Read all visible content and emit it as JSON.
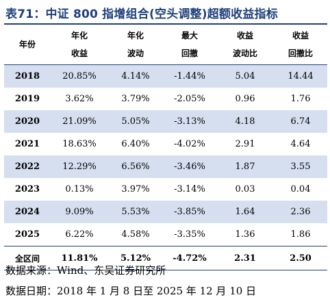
{
  "title": "表71：中证 800 指增组合(空头调整)超额收益指标",
  "headers": [
    [
      "年份"
    ],
    [
      "年化",
      "收益"
    ],
    [
      "年化",
      "波动"
    ],
    [
      "最大",
      "回撤"
    ],
    [
      "收益",
      "波动比"
    ],
    [
      "收益",
      "回撤比"
    ]
  ],
  "rows": [
    [
      "2018",
      "20.85%",
      "4.14%",
      "-1.44%",
      "5.04",
      "14.44"
    ],
    [
      "2019",
      "3.62%",
      "3.79%",
      "-2.05%",
      "0.96",
      "1.76"
    ],
    [
      "2020",
      "21.09%",
      "5.05%",
      "-3.13%",
      "4.18",
      "6.74"
    ],
    [
      "2021",
      "18.63%",
      "6.40%",
      "-4.02%",
      "2.91",
      "4.64"
    ],
    [
      "2022",
      "12.29%",
      "6.56%",
      "-3.46%",
      "1.87",
      "3.55"
    ],
    [
      "2023",
      "0.13%",
      "3.97%",
      "-3.14%",
      "0.03",
      "0.04"
    ],
    [
      "2024",
      "9.09%",
      "5.53%",
      "-3.85%",
      "1.64",
      "2.36"
    ],
    [
      "2025",
      "6.22%",
      "4.58%",
      "-3.35%",
      "1.36",
      "1.86"
    ]
  ],
  "total": [
    "全区间",
    "11.81%",
    "5.12%",
    "-4.72%",
    "2.31",
    "2.50"
  ],
  "source": "数据来源：Wind、东吴证券研究所",
  "date_range": "数据日期：2018 年 1 月 8 日至 2025 年 12 月 10 日",
  "colors": {
    "title": "#1f3f7a",
    "rule": "#1f3f7a",
    "shade": "#d5dff0"
  }
}
